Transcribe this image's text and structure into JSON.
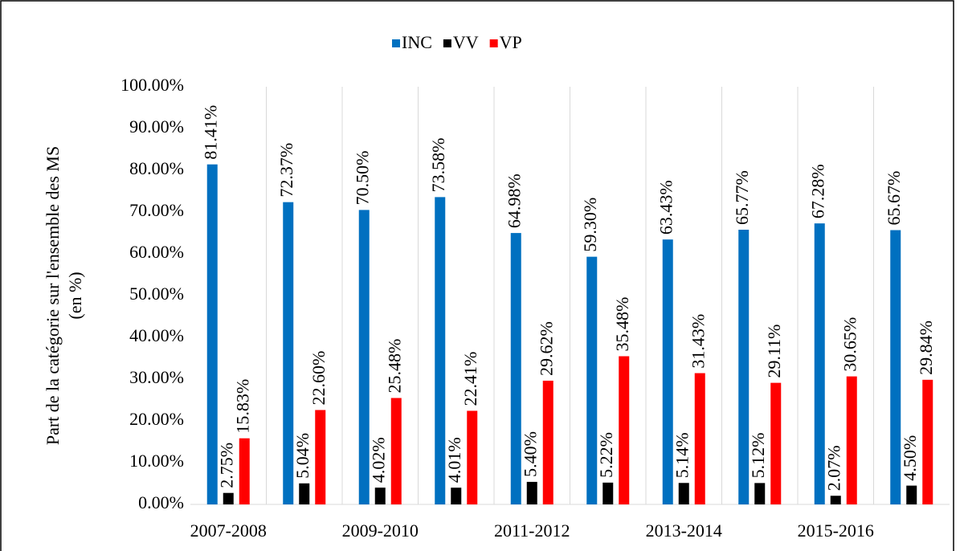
{
  "chart_data": {
    "type": "bar",
    "y_label": [
      "Part de la catégorie sur l'ensemble des MS",
      "(en %)"
    ],
    "categories": [
      "2007-2008",
      null,
      "2009-2010",
      null,
      "2011-2012",
      null,
      "2013-2014",
      null,
      "2015-2016",
      null
    ],
    "series": [
      {
        "name": "INC",
        "color": "#0070c0",
        "values": [
          81.41,
          72.37,
          70.5,
          73.58,
          64.98,
          59.3,
          63.43,
          65.77,
          67.28,
          65.67
        ],
        "value_labels": [
          "81.41%",
          "72.37%",
          "70.50%",
          "73.58%",
          "64.98%",
          "59.30%",
          "63.43%",
          "65.77%",
          "67.28%",
          "65.67%"
        ]
      },
      {
        "name": "VV",
        "color": "#000000",
        "values": [
          2.75,
          5.04,
          4.02,
          4.01,
          5.4,
          5.22,
          5.14,
          5.12,
          2.07,
          4.5
        ],
        "value_labels": [
          "2.75%",
          "5.04%",
          "4.02%",
          "4.01%",
          "5.40%",
          "5.22%",
          "5.14%",
          "5.12%",
          "2.07%",
          "4.50%"
        ]
      },
      {
        "name": "VP",
        "color": "#ff0000",
        "values": [
          15.83,
          22.6,
          25.48,
          22.41,
          29.62,
          35.48,
          31.43,
          29.11,
          30.65,
          29.84
        ],
        "value_labels": [
          "15.83%",
          "22.60%",
          "25.48%",
          "22.41%",
          "29.62%",
          "35.48%",
          "31.43%",
          "29.11%",
          "30.65%",
          "29.84%"
        ]
      }
    ],
    "ylim": [
      0,
      100
    ],
    "yticks": [
      {
        "value": 0,
        "label": "0.00%"
      },
      {
        "value": 10,
        "label": "10.00%"
      },
      {
        "value": 20,
        "label": "20.00%"
      },
      {
        "value": 30,
        "label": "30.00%"
      },
      {
        "value": 40,
        "label": "40.00%"
      },
      {
        "value": 50,
        "label": "50.00%"
      },
      {
        "value": 60,
        "label": "60.00%"
      },
      {
        "value": 70,
        "label": "70.00%"
      },
      {
        "value": 80,
        "label": "80.00%"
      },
      {
        "value": 90,
        "label": "90.00%"
      },
      {
        "value": 100,
        "label": "100.00%"
      }
    ],
    "legend": "top"
  }
}
